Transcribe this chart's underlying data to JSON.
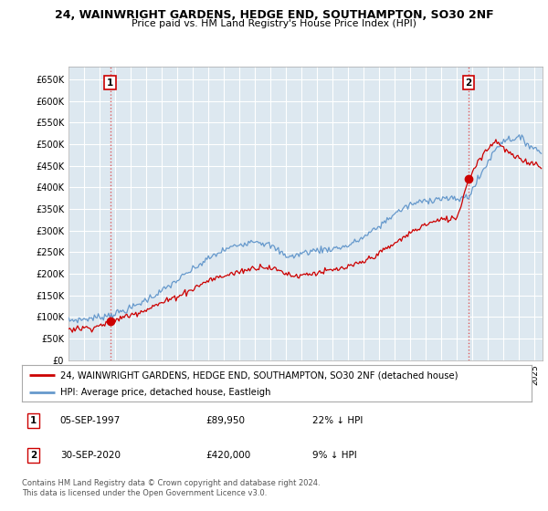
{
  "title": "24, WAINWRIGHT GARDENS, HEDGE END, SOUTHAMPTON, SO30 2NF",
  "subtitle": "Price paid vs. HM Land Registry's House Price Index (HPI)",
  "ylim": [
    0,
    680000
  ],
  "xlim_start": 1995.0,
  "xlim_end": 2025.5,
  "sale1": {
    "date_num": 1997.68,
    "price": 89950,
    "label": "1"
  },
  "sale2": {
    "date_num": 2020.75,
    "price": 420000,
    "label": "2"
  },
  "legend_line1": "24, WAINWRIGHT GARDENS, HEDGE END, SOUTHAMPTON, SO30 2NF (detached house)",
  "legend_line2": "HPI: Average price, detached house, Eastleigh",
  "table_row1": [
    "1",
    "05-SEP-1997",
    "£89,950",
    "22% ↓ HPI"
  ],
  "table_row2": [
    "2",
    "30-SEP-2020",
    "£420,000",
    "9% ↓ HPI"
  ],
  "footer": "Contains HM Land Registry data © Crown copyright and database right 2024.\nThis data is licensed under the Open Government Licence v3.0.",
  "hpi_color": "#6699cc",
  "price_color": "#cc0000",
  "dashed_color": "#dd4444",
  "chart_bg": "#dde8f0",
  "background_color": "#ffffff",
  "grid_color": "#ffffff"
}
